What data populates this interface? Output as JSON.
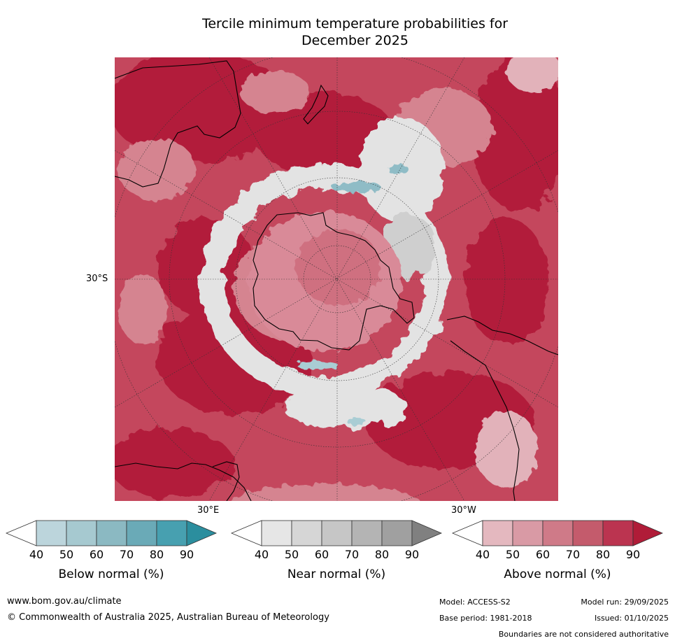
{
  "title_line1": "Tercile minimum temperature probabilities for",
  "title_line2": "December 2025",
  "axis_labels": {
    "lat_30s": "30°S",
    "lon_30e": "30°E",
    "lon_30w": "30°W"
  },
  "colorbars": [
    {
      "label": "Below normal (%)",
      "ticks": [
        "40",
        "50",
        "60",
        "70",
        "80",
        "90"
      ],
      "colors": [
        "#ffffff",
        "#bcd5dc",
        "#a6c9d0",
        "#8bb9c2",
        "#6aaab7",
        "#47a0b0",
        "#2b8e9e"
      ]
    },
    {
      "label": "Near normal (%)",
      "ticks": [
        "40",
        "50",
        "60",
        "70",
        "80",
        "90"
      ],
      "colors": [
        "#ffffff",
        "#e6e6e6",
        "#d6d6d6",
        "#c6c6c6",
        "#b4b4b4",
        "#a0a0a0",
        "#808080"
      ]
    },
    {
      "label": "Above normal (%)",
      "ticks": [
        "40",
        "50",
        "60",
        "70",
        "80",
        "90"
      ],
      "colors": [
        "#ffffff",
        "#e4b8bf",
        "#d99aa5",
        "#cf7a88",
        "#c45b6c",
        "#bb3450",
        "#b01c38"
      ]
    }
  ],
  "map_colors": {
    "base": "#c4475d",
    "light": "#d58490",
    "pale": "#e2b2ba",
    "dark": "#b21e3b",
    "near": "#e3e3e3",
    "near_mid": "#cfcfcf",
    "below": "#8fbcc6",
    "land_line": "#000000",
    "grid": "#333333"
  },
  "footer": {
    "website": "www.bom.gov.au/climate",
    "copyright": "© Commonwealth of Australia 2025, Australian Bureau of Meteorology",
    "model": "Model: ACCESS-S2",
    "model_run": "Model run: 29/09/2025",
    "base_period": "Base period: 1981-2018",
    "issued": "Issued: 01/10/2025",
    "disclaimer": "Boundaries are not considered authoritative"
  }
}
